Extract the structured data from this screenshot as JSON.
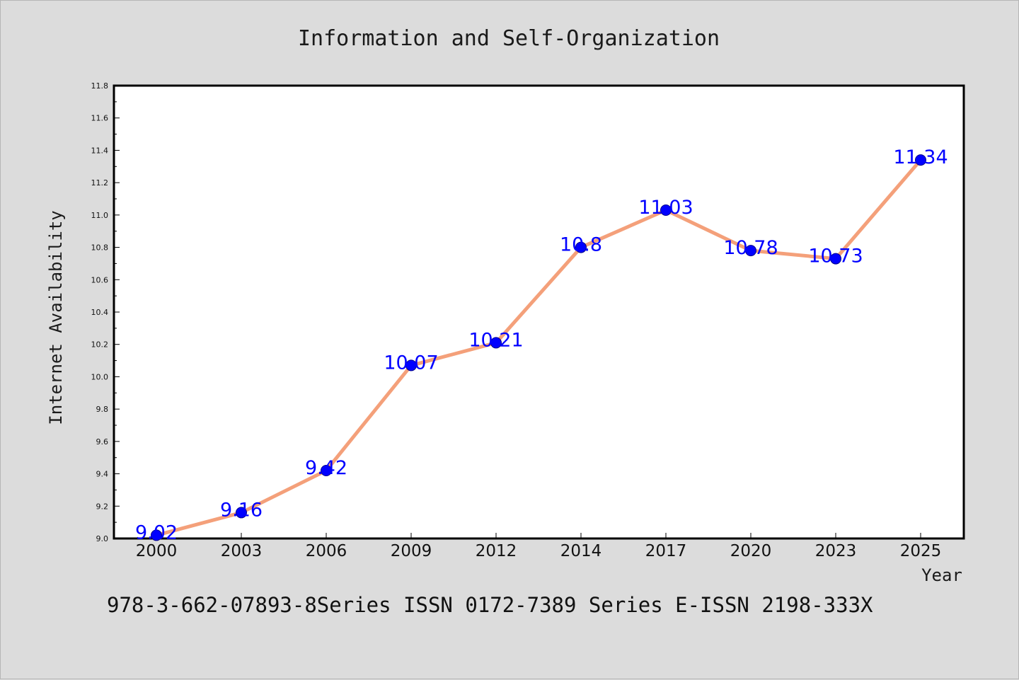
{
  "chart_data": {
    "type": "line",
    "title": "Information and Self-Organization",
    "xlabel": "Year",
    "ylabel": "Internet Availability",
    "categories": [
      "2000",
      "2003",
      "2006",
      "2009",
      "2012",
      "2014",
      "2017",
      "2020",
      "2023",
      "2025"
    ],
    "series": [
      {
        "values": [
          9.02,
          9.16,
          9.42,
          10.07,
          10.21,
          10.8,
          11.03,
          10.78,
          10.73,
          11.34
        ],
        "data_labels": [
          "9.02",
          "9.16",
          "9.42",
          "10.07",
          "10.21",
          "10.8",
          "11.03",
          "10.78",
          "10.73",
          "11.34"
        ],
        "line_color": "#f4a07a",
        "marker_color": "#0000ff"
      }
    ],
    "ylim": [
      9.0,
      11.8
    ],
    "yticks": [
      "9.0",
      "9.2",
      "9.4",
      "9.6",
      "9.8",
      "10.0",
      "10.2",
      "10.4",
      "10.6",
      "10.8",
      "11.0",
      "11.2",
      "11.4",
      "11.6",
      "11.8"
    ],
    "grid": false,
    "legend": "none"
  },
  "footer": {
    "text": "978-3-662-07893-8Series ISSN 0172-7389 Series E-ISSN 2198-333X"
  }
}
